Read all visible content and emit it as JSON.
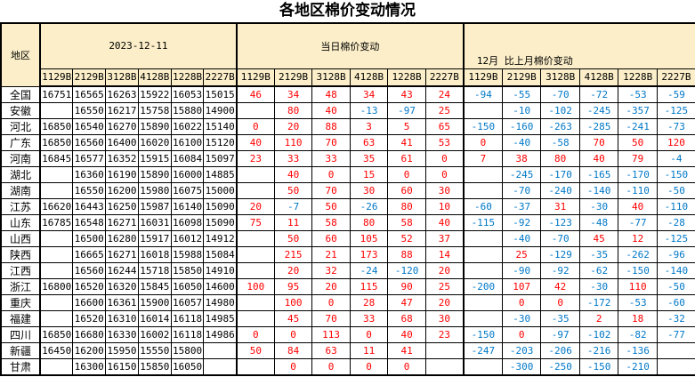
{
  "title": "各地区棉价变动情况",
  "colors": {
    "positive_value": "#FF0000",
    "negative_value": "#0078C8",
    "header_bg": "#FBEEC8",
    "border": "#000000"
  },
  "chart_data": {
    "type": "table",
    "title": "各地区棉价变动情况",
    "region_header": "地区",
    "sections": [
      {
        "label": "2023-12-11"
      },
      {
        "label": "当日棉价变动"
      },
      {
        "label": "12月 比上月棉价变动"
      }
    ],
    "grade_labels": [
      "1129B",
      "2129B",
      "3128B",
      "4128B",
      "1228B",
      "2227B"
    ],
    "rows": [
      {
        "region": "全国",
        "prices": [
          "16751",
          "16565",
          "16263",
          "15922",
          "16053",
          "15015"
        ],
        "daily": [
          "46",
          "34",
          "48",
          "34",
          "43",
          "24"
        ],
        "monthly": [
          "-94",
          "-55",
          "-70",
          "-72",
          "-53",
          "-59"
        ]
      },
      {
        "region": "安徽",
        "prices": [
          "",
          "16550",
          "16217",
          "15758",
          "15880",
          "14900"
        ],
        "daily": [
          "",
          "80",
          "40",
          "-13",
          "-97",
          "25"
        ],
        "monthly": [
          "",
          "-10",
          "-102",
          "-245",
          "-357",
          "-125"
        ]
      },
      {
        "region": "河北",
        "prices": [
          "16850",
          "16540",
          "16270",
          "15890",
          "16022",
          "15140"
        ],
        "daily": [
          "0",
          "20",
          "88",
          "3",
          "5",
          "65"
        ],
        "monthly": [
          "-150",
          "-160",
          "-263",
          "-285",
          "-241",
          "-73"
        ]
      },
      {
        "region": "广东",
        "prices": [
          "16850",
          "16560",
          "16400",
          "16020",
          "16100",
          "15120"
        ],
        "daily": [
          "40",
          "110",
          "70",
          "63",
          "41",
          "53"
        ],
        "monthly": [
          "0",
          "-40",
          "-58",
          "70",
          "50",
          "120"
        ]
      },
      {
        "region": "河南",
        "prices": [
          "16845",
          "16577",
          "16352",
          "15915",
          "16084",
          "15097"
        ],
        "daily": [
          "23",
          "33",
          "33",
          "35",
          "61",
          "0"
        ],
        "monthly": [
          "7",
          "38",
          "80",
          "40",
          "79",
          "-4"
        ]
      },
      {
        "region": "湖北",
        "prices": [
          "",
          "16360",
          "16190",
          "15890",
          "16000",
          "14885"
        ],
        "daily": [
          "",
          "40",
          "0",
          "15",
          "0",
          "0"
        ],
        "monthly": [
          "",
          "-245",
          "-170",
          "-165",
          "-170",
          "-150"
        ]
      },
      {
        "region": "湖南",
        "prices": [
          "",
          "16550",
          "16200",
          "15980",
          "16075",
          "15000"
        ],
        "daily": [
          "",
          "50",
          "70",
          "30",
          "60",
          "30"
        ],
        "monthly": [
          "",
          "-70",
          "-240",
          "-140",
          "-110",
          "-50"
        ]
      },
      {
        "region": "江苏",
        "prices": [
          "16620",
          "16443",
          "16250",
          "15987",
          "16140",
          "15090"
        ],
        "daily": [
          "20",
          "-7",
          "50",
          "-26",
          "80",
          "10"
        ],
        "monthly": [
          "-60",
          "-37",
          "31",
          "-30",
          "40",
          "-110"
        ]
      },
      {
        "region": "山东",
        "prices": [
          "16785",
          "16548",
          "16271",
          "16031",
          "16098",
          "15090"
        ],
        "daily": [
          "75",
          "11",
          "58",
          "80",
          "58",
          "40"
        ],
        "monthly": [
          "-115",
          "-92",
          "-123",
          "-48",
          "-77",
          "-28"
        ]
      },
      {
        "region": "山西",
        "prices": [
          "",
          "16500",
          "16280",
          "15917",
          "16012",
          "14912"
        ],
        "daily": [
          "",
          "50",
          "60",
          "105",
          "52",
          "37"
        ],
        "monthly": [
          "",
          "-40",
          "-70",
          "45",
          "12",
          "-125"
        ]
      },
      {
        "region": "陕西",
        "prices": [
          "",
          "16665",
          "16271",
          "16018",
          "15988",
          "15084"
        ],
        "daily": [
          "",
          "215",
          "21",
          "173",
          "88",
          "14"
        ],
        "monthly": [
          "",
          "25",
          "-129",
          "-35",
          "-262",
          "-96"
        ]
      },
      {
        "region": "江西",
        "prices": [
          "",
          "16560",
          "16244",
          "15718",
          "15850",
          "14910"
        ],
        "daily": [
          "",
          "20",
          "32",
          "-24",
          "-120",
          "20"
        ],
        "monthly": [
          "",
          "-90",
          "-92",
          "-62",
          "-150",
          "-140"
        ]
      },
      {
        "region": "浙江",
        "prices": [
          "16800",
          "16520",
          "16320",
          "15845",
          "16050",
          "14600"
        ],
        "daily": [
          "100",
          "95",
          "20",
          "115",
          "90",
          "25"
        ],
        "monthly": [
          "-200",
          "107",
          "42",
          "-30",
          "110",
          "-50"
        ]
      },
      {
        "region": "重庆",
        "prices": [
          "",
          "16600",
          "16361",
          "15900",
          "16057",
          "14980"
        ],
        "daily": [
          "",
          "100",
          "0",
          "28",
          "47",
          "20"
        ],
        "monthly": [
          "",
          "0",
          "0",
          "-172",
          "-53",
          "-60"
        ]
      },
      {
        "region": "福建",
        "prices": [
          "",
          "16520",
          "16310",
          "16014",
          "16118",
          "14985"
        ],
        "daily": [
          "",
          "45",
          "70",
          "33",
          "68",
          "30"
        ],
        "monthly": [
          "",
          "-30",
          "-35",
          "2",
          "18",
          "-32"
        ]
      },
      {
        "region": "四川",
        "prices": [
          "16850",
          "16680",
          "16330",
          "16002",
          "16118",
          "14986"
        ],
        "daily": [
          "0",
          "0",
          "113",
          "0",
          "40",
          "23"
        ],
        "monthly": [
          "-150",
          "0",
          "-97",
          "-102",
          "-82",
          "-77"
        ]
      },
      {
        "region": "新疆",
        "prices": [
          "16450",
          "16200",
          "15950",
          "15550",
          "15800",
          ""
        ],
        "daily": [
          "50",
          "84",
          "63",
          "11",
          "41",
          ""
        ],
        "monthly": [
          "-247",
          "-203",
          "-206",
          "-216",
          "-136",
          ""
        ]
      },
      {
        "region": "甘肃",
        "prices": [
          "",
          "16300",
          "16150",
          "15850",
          "16050",
          ""
        ],
        "daily": [
          "",
          "0",
          "0",
          "0",
          "0",
          ""
        ],
        "monthly": [
          "",
          "-300",
          "-250",
          "-150",
          "-210",
          ""
        ]
      }
    ]
  }
}
